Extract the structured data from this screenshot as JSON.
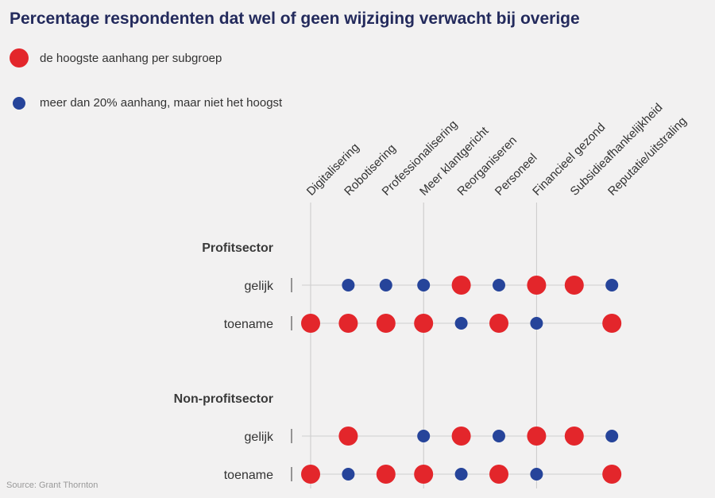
{
  "title": "Percentage respondenten dat wel of geen wijziging verwacht bij overige",
  "legend": {
    "highest": {
      "label": "de hoogste aanhang per subgroep",
      "color": "#e3262b"
    },
    "over20": {
      "label": "meer dan 20% aanhang, maar niet het hoogst",
      "color": "#26449a"
    }
  },
  "source": "Source: Grant Thornton",
  "chart_data": {
    "type": "scatter",
    "categories": [
      "Digitalisering",
      "Robotisering",
      "Professionalisering",
      "Meer klantgericht",
      "Reorganiseren",
      "Personeel",
      "Financieel gezond",
      "Subsidieafhankelijkheid",
      "Reputatie/uitstraling"
    ],
    "groups": [
      {
        "name": "Profitsector",
        "rows": [
          {
            "label": "gelijk",
            "values": [
              "none",
              "over20",
              "over20",
              "over20",
              "highest",
              "over20",
              "highest",
              "highest",
              "over20"
            ]
          },
          {
            "label": "toename",
            "values": [
              "highest",
              "highest",
              "highest",
              "highest",
              "over20",
              "highest",
              "over20",
              "none",
              "highest"
            ]
          }
        ]
      },
      {
        "name": "Non-profitsector",
        "rows": [
          {
            "label": "gelijk",
            "values": [
              "none",
              "highest",
              "none",
              "over20",
              "highest",
              "over20",
              "highest",
              "highest",
              "over20"
            ]
          },
          {
            "label": "toename",
            "values": [
              "highest",
              "over20",
              "highest",
              "highest",
              "over20",
              "highest",
              "over20",
              "none",
              "highest"
            ]
          }
        ]
      }
    ]
  }
}
